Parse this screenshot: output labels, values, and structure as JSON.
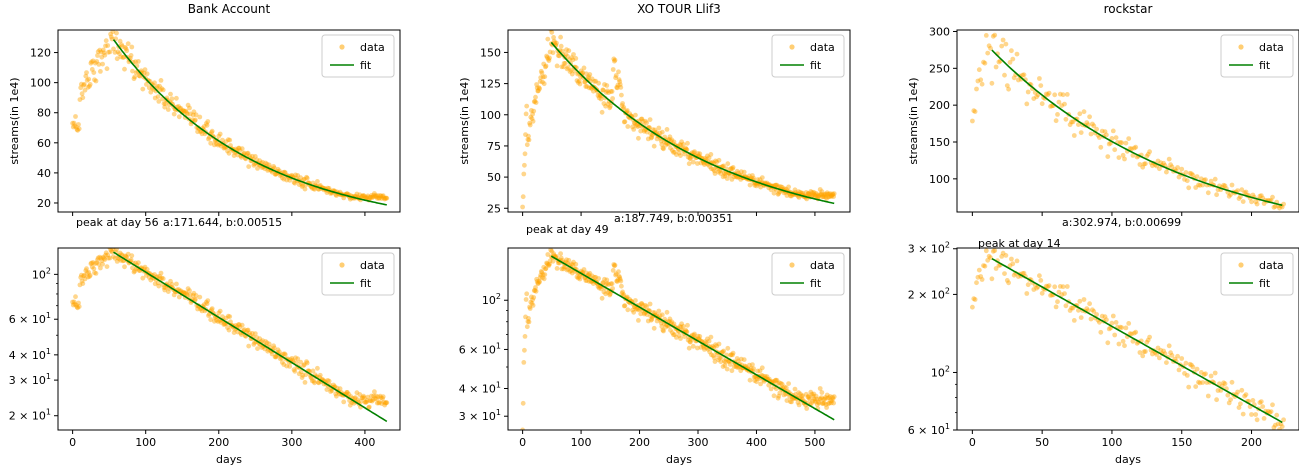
{
  "figure": {
    "xlabel": "days",
    "ylabel": "streams(in 1e4)",
    "legend": [
      "data",
      "fit"
    ],
    "colors": {
      "data": "#FFA500",
      "fit": "#008000",
      "axis": "#000000"
    }
  },
  "chart_data": [
    {
      "type": "scatter",
      "title": "Bank Account",
      "yscale": "linear",
      "xlim": [
        -20,
        448
      ],
      "ylim": [
        14,
        135
      ],
      "legend_placement": "top-right",
      "grid": false,
      "ylabel": "streams(in 1e4)",
      "xlabel": "",
      "yticks": [
        20,
        40,
        60,
        80,
        100,
        120
      ],
      "xticks_labeled": [],
      "xticks_marks": [
        0,
        100,
        200,
        300,
        400
      ],
      "peak_day": 56,
      "a": 171.644,
      "b": 0.00515,
      "n_days": 430,
      "peak_label": "peak at day 56",
      "fit_label": "a:171.644, b:0.00515",
      "series": [
        {
          "name": "data",
          "type": "scatter"
        },
        {
          "name": "fit",
          "type": "line",
          "x_range": [
            56,
            430
          ]
        }
      ]
    },
    {
      "type": "scatter",
      "title": "XO TOUR Llif3",
      "yscale": "linear",
      "xlim": [
        -25,
        560
      ],
      "ylim": [
        22,
        168
      ],
      "legend_placement": "top-right",
      "grid": false,
      "ylabel": "streams(in 1e4)",
      "xlabel": "",
      "yticks": [
        25,
        50,
        75,
        100,
        125,
        150
      ],
      "xticks_labeled": [],
      "xticks_marks": [
        0,
        100,
        200,
        300,
        400,
        500
      ],
      "peak_day": 49,
      "a": 187.749,
      "b": 0.00351,
      "n_days": 533,
      "peak_label": "peak at day 49",
      "fit_label": "a:187.749, b:0.00351",
      "series": [
        {
          "name": "data",
          "type": "scatter"
        },
        {
          "name": "fit",
          "type": "line",
          "x_range": [
            49,
            533
          ]
        }
      ]
    },
    {
      "type": "scatter",
      "title": "rockstar",
      "yscale": "linear",
      "xlim": [
        -11,
        234
      ],
      "ylim": [
        55,
        302
      ],
      "legend_placement": "top-right",
      "grid": false,
      "ylabel": "streams(in 1e4)",
      "xlabel": "",
      "yticks": [
        100,
        150,
        200,
        250,
        300
      ],
      "xticks_labeled": [],
      "xticks_marks": [
        0,
        50,
        100,
        150,
        200
      ],
      "peak_day": 14,
      "a": 302.974,
      "b": 0.00699,
      "n_days": 223,
      "peak_label": "peak at day 14",
      "fit_label": "a:302.974, b:0.00699",
      "series": [
        {
          "name": "data",
          "type": "scatter"
        },
        {
          "name": "fit",
          "type": "line",
          "x_range": [
            14,
            223
          ]
        }
      ]
    },
    {
      "type": "scatter",
      "title": "",
      "yscale": "log",
      "xlim": [
        -20,
        448
      ],
      "ylim": [
        17,
        135
      ],
      "legend_placement": "top-right",
      "grid": false,
      "ylabel": "",
      "xlabel": "days",
      "yticks": [
        20,
        30,
        40,
        60,
        100
      ],
      "ytick_labels": [
        [
          "2",
          "1"
        ],
        [
          "3",
          "1"
        ],
        [
          "4",
          "1"
        ],
        [
          "6",
          "1"
        ],
        [
          "10",
          "2"
        ]
      ],
      "xticks_labeled": [
        0,
        100,
        200,
        300,
        400
      ],
      "peak_day": 56,
      "a": 171.644,
      "b": 0.00515,
      "n_days": 430,
      "series": [
        {
          "name": "data",
          "type": "scatter"
        },
        {
          "name": "fit",
          "type": "line",
          "x_range": [
            56,
            430
          ]
        }
      ]
    },
    {
      "type": "scatter",
      "title": "",
      "yscale": "log",
      "xlim": [
        -25,
        560
      ],
      "ylim": [
        26,
        172
      ],
      "legend_placement": "top-right",
      "grid": false,
      "ylabel": "",
      "xlabel": "days",
      "yticks": [
        30,
        40,
        60,
        100
      ],
      "ytick_labels": [
        [
          "3",
          "1"
        ],
        [
          "4",
          "1"
        ],
        [
          "6",
          "1"
        ],
        [
          "10",
          "2"
        ]
      ],
      "xticks_labeled": [
        0,
        100,
        200,
        300,
        400,
        500
      ],
      "peak_day": 49,
      "a": 187.749,
      "b": 0.00351,
      "n_days": 533,
      "series": [
        {
          "name": "data",
          "type": "scatter"
        },
        {
          "name": "fit",
          "type": "line",
          "x_range": [
            49,
            533
          ]
        }
      ]
    },
    {
      "type": "scatter",
      "title": "",
      "yscale": "log",
      "xlim": [
        -11,
        234
      ],
      "ylim": [
        60,
        302
      ],
      "legend_placement": "top-right",
      "grid": false,
      "ylabel": "",
      "xlabel": "days",
      "yticks": [
        60,
        100,
        200,
        300
      ],
      "ytick_labels": [
        [
          "6",
          "1"
        ],
        [
          "10",
          "2"
        ],
        [
          "2",
          "2"
        ],
        [
          "3",
          "2"
        ]
      ],
      "xticks_labeled": [
        0,
        50,
        100,
        150,
        200
      ],
      "peak_day": 14,
      "a": 302.974,
      "b": 0.00699,
      "n_days": 223,
      "series": [
        {
          "name": "data",
          "type": "scatter"
        },
        {
          "name": "fit",
          "type": "line",
          "x_range": [
            14,
            223
          ]
        }
      ]
    }
  ]
}
